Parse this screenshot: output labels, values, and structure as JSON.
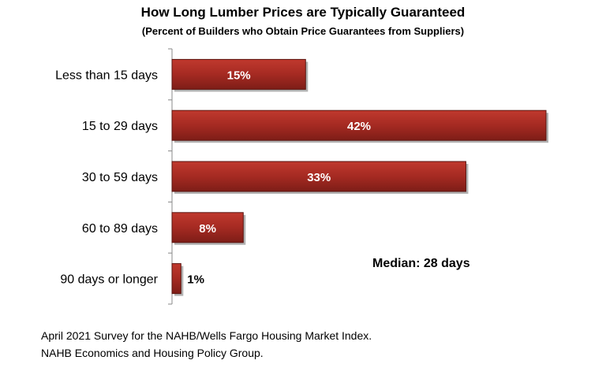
{
  "chart_data": {
    "type": "bar",
    "orientation": "horizontal",
    "title": "How Long Lumber Prices are Typically Guaranteed",
    "subtitle": "(Percent of Builders who Obtain Price Guarantees from Suppliers)",
    "categories": [
      "Less than 15 days",
      "15 to 29 days",
      "30 to 59 days",
      "60 to 89 days",
      "90 days or longer"
    ],
    "values": [
      15,
      42,
      33,
      8,
      1
    ],
    "value_labels": [
      "15%",
      "42%",
      "33%",
      "8%",
      "1%"
    ],
    "xlim": [
      0,
      42
    ],
    "grid": false,
    "annotation": "Median: 28 days",
    "bar_color": "#a52a22"
  },
  "source": {
    "line1": "April 2021 Survey for the NAHB/Wells Fargo Housing Market Index.",
    "line2": "NAHB Economics and Housing Policy Group."
  }
}
